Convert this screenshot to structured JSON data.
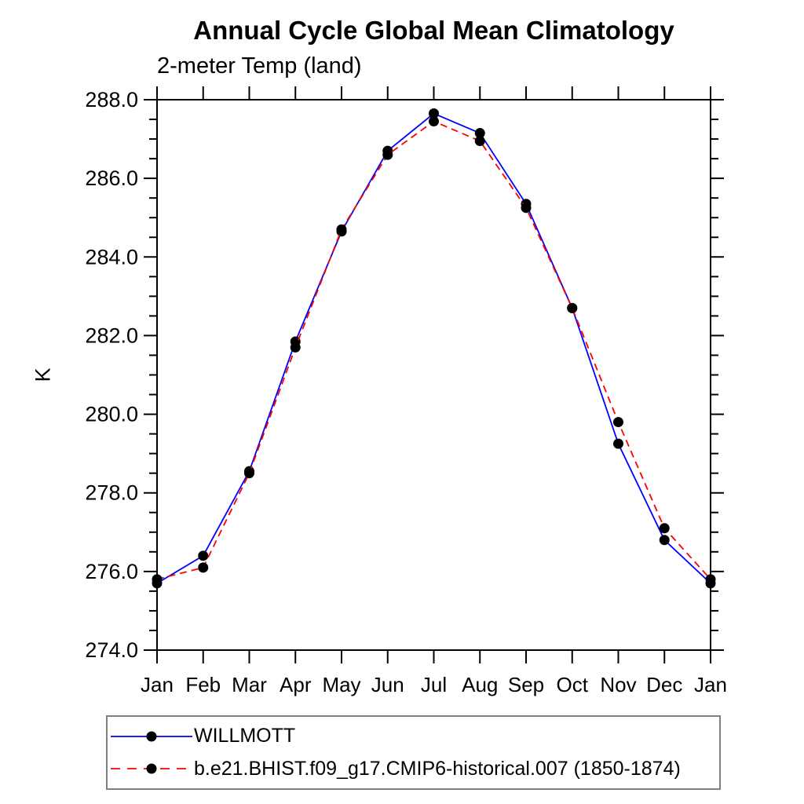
{
  "header": {
    "title": "Annual Cycle Global Mean Climatology",
    "subtitle": "2-meter Temp (land)"
  },
  "chart_data": {
    "type": "line",
    "title": "Annual Cycle Global Mean Climatology",
    "subtitle": "2-meter Temp (land)",
    "xlabel": "",
    "ylabel": "K",
    "categories": [
      "Jan",
      "Feb",
      "Mar",
      "Apr",
      "May",
      "Jun",
      "Jul",
      "Aug",
      "Sep",
      "Oct",
      "Nov",
      "Dec",
      "Jan"
    ],
    "series": [
      {
        "name": "WILLMOTT",
        "color": "#0000ff",
        "style": "solid",
        "marker": "circle",
        "marker_color": "#000000",
        "values": [
          275.7,
          276.4,
          278.55,
          281.85,
          284.65,
          286.7,
          287.65,
          287.15,
          285.35,
          282.7,
          279.25,
          276.8,
          275.7
        ]
      },
      {
        "name": "b.e21.BHIST.f09_g17.CMIP6-historical.007 (1850-1874)",
        "color": "#ff0000",
        "style": "dashed",
        "marker": "circle",
        "marker_color": "#000000",
        "values": [
          275.8,
          276.1,
          278.5,
          281.7,
          284.7,
          286.6,
          287.45,
          286.95,
          285.25,
          282.7,
          279.8,
          277.1,
          275.8
        ]
      }
    ],
    "ylim": [
      274.0,
      288.0
    ],
    "ytick_major": [
      274,
      276,
      278,
      280,
      282,
      284,
      286,
      288
    ],
    "ytick_labels": [
      "274.0",
      "276.0",
      "278.0",
      "280.0",
      "282.0",
      "284.0",
      "286.0",
      "288.0"
    ],
    "ytick_minor_step": 0.5,
    "grid": false,
    "legend_position": "bottom-left"
  }
}
